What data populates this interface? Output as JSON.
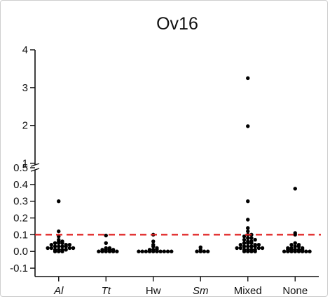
{
  "chart_data": {
    "type": "scatter",
    "title": "Ov16",
    "xlabel": "",
    "ylabel": "",
    "categories": [
      "Al",
      "Tt",
      "Hw",
      "Sm",
      "Mixed",
      "None"
    ],
    "italic_categories": [
      "Al",
      "Tt",
      "Sm"
    ],
    "y_axis": {
      "broken": true,
      "break_between": [
        0.5,
        1
      ],
      "lower_range": [
        -0.15,
        0.5
      ],
      "upper_range": [
        0.88,
        4
      ],
      "lower_ticks": [
        "-0.1",
        "0.0",
        "0.1",
        "0.2",
        "0.3",
        "0.4",
        "0.5"
      ],
      "upper_ticks": [
        "1",
        "2",
        "3",
        "4"
      ]
    },
    "threshold": {
      "value": 0.1,
      "color": "#e02020",
      "style": "dashed"
    },
    "point_color": "#000000",
    "series": [
      {
        "category": "Al",
        "values": [
          0.3,
          0.12,
          0.09,
          0.07,
          0.06,
          0.06,
          0.05,
          0.05,
          0.05,
          0.04,
          0.04,
          0.04,
          0.03,
          0.03,
          0.03,
          0.03,
          0.02,
          0.02,
          0.02,
          0.02,
          0.01,
          0.01,
          0.01,
          0.01,
          0.0,
          0.0,
          0.0
        ]
      },
      {
        "category": "Tt",
        "values": [
          0.095,
          0.05,
          0.02,
          0.02,
          0.01,
          0.01,
          0.01,
          0.01,
          0.0,
          0.0,
          0.0,
          0.0,
          0.0,
          0.0
        ]
      },
      {
        "category": "Hw",
        "values": [
          0.1,
          0.06,
          0.04,
          0.03,
          0.02,
          0.01,
          0.01,
          0.01,
          0.0,
          0.0,
          0.0,
          0.0,
          0.0,
          0.0,
          0.0,
          0.0,
          0.0,
          0.0
        ]
      },
      {
        "category": "Sm",
        "values": [
          0.025,
          0.01,
          0.0,
          0.0,
          0.0,
          0.0
        ]
      },
      {
        "category": "Mixed",
        "values": [
          3.25,
          1.98,
          0.3,
          0.19,
          0.14,
          0.12,
          0.1,
          0.1,
          0.09,
          0.08,
          0.08,
          0.07,
          0.07,
          0.06,
          0.06,
          0.05,
          0.05,
          0.05,
          0.04,
          0.04,
          0.04,
          0.03,
          0.03,
          0.03,
          0.03,
          0.02,
          0.02,
          0.02,
          0.02,
          0.01,
          0.01,
          0.01,
          0.01,
          0.0,
          0.0,
          0.0,
          0.0
        ]
      },
      {
        "category": "None",
        "values": [
          0.375,
          0.11,
          0.1,
          0.05,
          0.04,
          0.04,
          0.03,
          0.03,
          0.02,
          0.02,
          0.02,
          0.01,
          0.01,
          0.01,
          0.01,
          0.01,
          0.0,
          0.0,
          0.0,
          0.0,
          0.0,
          0.0,
          0.0,
          0.0
        ]
      }
    ]
  }
}
